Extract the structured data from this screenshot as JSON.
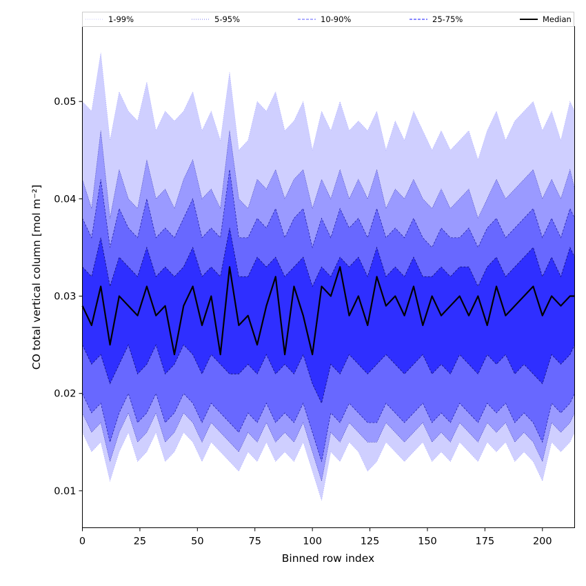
{
  "chart_data": {
    "type": "area",
    "xlabel": "Binned row index",
    "ylabel": "CO total vertical column [mol m⁻²]",
    "xlim": [
      0,
      214
    ],
    "ylim": [
      0.0062,
      0.0577
    ],
    "x_ticks": [
      0,
      25,
      50,
      75,
      100,
      125,
      150,
      175,
      200
    ],
    "y_ticks": [
      0.01,
      0.02,
      0.03,
      0.04,
      0.05
    ],
    "y_tick_labels": [
      "0.01",
      "0.02",
      "0.03",
      "0.04",
      "0.05"
    ],
    "grid": false,
    "legend_position": "top",
    "colors": {
      "band_1_99": "#cfcfff",
      "band_5_95": "#9a9aff",
      "band_10_90": "#6868ff",
      "band_25_75": "#2f2fff",
      "median": "#000000"
    },
    "legend": [
      {
        "label": "1-99%",
        "style": "dotted",
        "color": "#c8c8ff"
      },
      {
        "label": "5-95%",
        "style": "dotted",
        "color": "#7777ee"
      },
      {
        "label": "10-90%",
        "style": "dashed",
        "color": "#7a7aff"
      },
      {
        "label": "25-75%",
        "style": "dashed",
        "color": "#4040ff"
      },
      {
        "label": "Median",
        "style": "solid",
        "color": "#000000"
      }
    ],
    "x_step": 4,
    "series": [
      {
        "name": "1-99%",
        "role": "band",
        "x": [
          0,
          4,
          8,
          12,
          16,
          20,
          24,
          28,
          32,
          36,
          40,
          44,
          48,
          52,
          56,
          60,
          64,
          68,
          72,
          76,
          80,
          84,
          88,
          92,
          96,
          100,
          104,
          108,
          112,
          116,
          120,
          124,
          128,
          132,
          136,
          140,
          144,
          148,
          152,
          156,
          160,
          164,
          168,
          172,
          176,
          180,
          184,
          188,
          192,
          196,
          200,
          204,
          208,
          212,
          214
        ],
        "upper": [
          0.05,
          0.049,
          0.055,
          0.046,
          0.051,
          0.049,
          0.048,
          0.052,
          0.047,
          0.049,
          0.048,
          0.049,
          0.051,
          0.047,
          0.049,
          0.046,
          0.053,
          0.045,
          0.046,
          0.05,
          0.049,
          0.051,
          0.047,
          0.048,
          0.05,
          0.045,
          0.049,
          0.047,
          0.05,
          0.047,
          0.048,
          0.047,
          0.049,
          0.045,
          0.048,
          0.046,
          0.049,
          0.047,
          0.045,
          0.047,
          0.045,
          0.046,
          0.047,
          0.044,
          0.047,
          0.049,
          0.046,
          0.048,
          0.049,
          0.05,
          0.047,
          0.049,
          0.046,
          0.05,
          0.049
        ],
        "lower": [
          0.016,
          0.014,
          0.015,
          0.011,
          0.014,
          0.016,
          0.013,
          0.014,
          0.016,
          0.013,
          0.014,
          0.016,
          0.015,
          0.013,
          0.015,
          0.014,
          0.013,
          0.012,
          0.014,
          0.013,
          0.015,
          0.013,
          0.014,
          0.013,
          0.015,
          0.012,
          0.009,
          0.014,
          0.013,
          0.015,
          0.014,
          0.012,
          0.013,
          0.015,
          0.014,
          0.013,
          0.014,
          0.015,
          0.013,
          0.014,
          0.013,
          0.015,
          0.014,
          0.013,
          0.015,
          0.014,
          0.015,
          0.013,
          0.014,
          0.013,
          0.011,
          0.015,
          0.014,
          0.015,
          0.016
        ]
      },
      {
        "name": "5-95%",
        "role": "band",
        "x": [
          0,
          4,
          8,
          12,
          16,
          20,
          24,
          28,
          32,
          36,
          40,
          44,
          48,
          52,
          56,
          60,
          64,
          68,
          72,
          76,
          80,
          84,
          88,
          92,
          96,
          100,
          104,
          108,
          112,
          116,
          120,
          124,
          128,
          132,
          136,
          140,
          144,
          148,
          152,
          156,
          160,
          164,
          168,
          172,
          176,
          180,
          184,
          188,
          192,
          196,
          200,
          204,
          208,
          212,
          214
        ],
        "upper": [
          0.042,
          0.039,
          0.047,
          0.038,
          0.043,
          0.04,
          0.039,
          0.044,
          0.04,
          0.041,
          0.039,
          0.042,
          0.044,
          0.04,
          0.041,
          0.039,
          0.047,
          0.04,
          0.039,
          0.042,
          0.041,
          0.043,
          0.04,
          0.042,
          0.043,
          0.039,
          0.042,
          0.04,
          0.043,
          0.04,
          0.042,
          0.04,
          0.043,
          0.039,
          0.041,
          0.04,
          0.042,
          0.04,
          0.039,
          0.041,
          0.039,
          0.04,
          0.041,
          0.038,
          0.04,
          0.042,
          0.04,
          0.041,
          0.042,
          0.043,
          0.04,
          0.042,
          0.04,
          0.043,
          0.041
        ],
        "lower": [
          0.018,
          0.016,
          0.017,
          0.013,
          0.016,
          0.018,
          0.015,
          0.016,
          0.018,
          0.015,
          0.016,
          0.018,
          0.017,
          0.015,
          0.017,
          0.016,
          0.015,
          0.014,
          0.016,
          0.015,
          0.017,
          0.015,
          0.016,
          0.015,
          0.017,
          0.014,
          0.011,
          0.016,
          0.015,
          0.017,
          0.016,
          0.015,
          0.015,
          0.017,
          0.016,
          0.015,
          0.016,
          0.017,
          0.015,
          0.016,
          0.015,
          0.017,
          0.016,
          0.015,
          0.017,
          0.016,
          0.017,
          0.015,
          0.016,
          0.015,
          0.013,
          0.017,
          0.016,
          0.017,
          0.018
        ]
      },
      {
        "name": "10-90%",
        "role": "band",
        "x": [
          0,
          4,
          8,
          12,
          16,
          20,
          24,
          28,
          32,
          36,
          40,
          44,
          48,
          52,
          56,
          60,
          64,
          68,
          72,
          76,
          80,
          84,
          88,
          92,
          96,
          100,
          104,
          108,
          112,
          116,
          120,
          124,
          128,
          132,
          136,
          140,
          144,
          148,
          152,
          156,
          160,
          164,
          168,
          172,
          176,
          180,
          184,
          188,
          192,
          196,
          200,
          204,
          208,
          212,
          214
        ],
        "upper": [
          0.038,
          0.036,
          0.042,
          0.035,
          0.039,
          0.037,
          0.036,
          0.04,
          0.036,
          0.037,
          0.036,
          0.038,
          0.04,
          0.036,
          0.037,
          0.036,
          0.043,
          0.036,
          0.036,
          0.038,
          0.037,
          0.039,
          0.036,
          0.038,
          0.039,
          0.035,
          0.038,
          0.036,
          0.039,
          0.037,
          0.038,
          0.036,
          0.039,
          0.036,
          0.037,
          0.036,
          0.038,
          0.036,
          0.035,
          0.037,
          0.036,
          0.036,
          0.037,
          0.035,
          0.037,
          0.038,
          0.036,
          0.037,
          0.038,
          0.039,
          0.036,
          0.038,
          0.036,
          0.039,
          0.038
        ],
        "lower": [
          0.02,
          0.018,
          0.019,
          0.015,
          0.018,
          0.02,
          0.017,
          0.018,
          0.02,
          0.017,
          0.018,
          0.02,
          0.019,
          0.017,
          0.019,
          0.018,
          0.017,
          0.016,
          0.018,
          0.017,
          0.019,
          0.017,
          0.018,
          0.017,
          0.019,
          0.016,
          0.013,
          0.018,
          0.017,
          0.019,
          0.018,
          0.017,
          0.017,
          0.019,
          0.018,
          0.017,
          0.018,
          0.019,
          0.017,
          0.018,
          0.017,
          0.019,
          0.018,
          0.017,
          0.019,
          0.018,
          0.019,
          0.017,
          0.018,
          0.017,
          0.015,
          0.019,
          0.018,
          0.019,
          0.02
        ]
      },
      {
        "name": "25-75%",
        "role": "band",
        "x": [
          0,
          4,
          8,
          12,
          16,
          20,
          24,
          28,
          32,
          36,
          40,
          44,
          48,
          52,
          56,
          60,
          64,
          68,
          72,
          76,
          80,
          84,
          88,
          92,
          96,
          100,
          104,
          108,
          112,
          116,
          120,
          124,
          128,
          132,
          136,
          140,
          144,
          148,
          152,
          156,
          160,
          164,
          168,
          172,
          176,
          180,
          184,
          188,
          192,
          196,
          200,
          204,
          208,
          212,
          214
        ],
        "upper": [
          0.033,
          0.032,
          0.036,
          0.031,
          0.034,
          0.033,
          0.032,
          0.035,
          0.032,
          0.033,
          0.032,
          0.033,
          0.035,
          0.032,
          0.033,
          0.032,
          0.037,
          0.032,
          0.032,
          0.034,
          0.033,
          0.034,
          0.032,
          0.033,
          0.034,
          0.031,
          0.033,
          0.032,
          0.034,
          0.033,
          0.034,
          0.032,
          0.035,
          0.032,
          0.033,
          0.032,
          0.034,
          0.032,
          0.032,
          0.033,
          0.032,
          0.033,
          0.033,
          0.031,
          0.033,
          0.034,
          0.032,
          0.033,
          0.034,
          0.035,
          0.032,
          0.034,
          0.032,
          0.035,
          0.034
        ],
        "lower": [
          0.025,
          0.023,
          0.024,
          0.021,
          0.023,
          0.025,
          0.022,
          0.023,
          0.025,
          0.022,
          0.023,
          0.025,
          0.024,
          0.022,
          0.024,
          0.023,
          0.022,
          0.022,
          0.023,
          0.022,
          0.024,
          0.022,
          0.023,
          0.022,
          0.024,
          0.021,
          0.019,
          0.023,
          0.022,
          0.024,
          0.023,
          0.022,
          0.023,
          0.024,
          0.023,
          0.022,
          0.023,
          0.024,
          0.022,
          0.023,
          0.022,
          0.024,
          0.023,
          0.022,
          0.024,
          0.023,
          0.024,
          0.022,
          0.023,
          0.022,
          0.021,
          0.024,
          0.023,
          0.024,
          0.025
        ]
      },
      {
        "name": "Median",
        "role": "line",
        "x": [
          0,
          4,
          8,
          12,
          16,
          20,
          24,
          28,
          32,
          36,
          40,
          44,
          48,
          52,
          56,
          60,
          64,
          68,
          72,
          76,
          80,
          84,
          88,
          92,
          96,
          100,
          104,
          108,
          112,
          116,
          120,
          124,
          128,
          132,
          136,
          140,
          144,
          148,
          152,
          156,
          160,
          164,
          168,
          172,
          176,
          180,
          184,
          188,
          192,
          196,
          200,
          204,
          208,
          212,
          214
        ],
        "y": [
          0.029,
          0.027,
          0.031,
          0.025,
          0.03,
          0.029,
          0.028,
          0.031,
          0.028,
          0.029,
          0.024,
          0.029,
          0.031,
          0.027,
          0.03,
          0.024,
          0.033,
          0.027,
          0.028,
          0.025,
          0.029,
          0.032,
          0.024,
          0.031,
          0.028,
          0.024,
          0.031,
          0.03,
          0.033,
          0.028,
          0.03,
          0.027,
          0.032,
          0.029,
          0.03,
          0.028,
          0.031,
          0.027,
          0.03,
          0.028,
          0.029,
          0.03,
          0.028,
          0.03,
          0.027,
          0.031,
          0.028,
          0.029,
          0.03,
          0.031,
          0.028,
          0.03,
          0.029,
          0.03,
          0.03
        ]
      }
    ]
  }
}
